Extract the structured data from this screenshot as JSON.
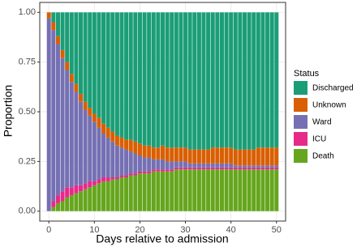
{
  "chart_data": {
    "type": "stacked_bar",
    "xlabel": "Days relative to admission",
    "ylabel": "Proportion",
    "legend_title": "Status",
    "x": [
      0,
      1,
      2,
      3,
      4,
      5,
      6,
      7,
      8,
      9,
      10,
      11,
      12,
      13,
      14,
      15,
      16,
      17,
      18,
      19,
      20,
      21,
      22,
      23,
      24,
      25,
      26,
      27,
      28,
      29,
      30,
      31,
      32,
      33,
      34,
      35,
      36,
      37,
      38,
      39,
      40,
      41,
      42,
      43,
      44,
      45,
      46,
      47,
      48,
      49,
      50
    ],
    "series": [
      {
        "name": "Discharged",
        "color": "#1b9e77",
        "values": [
          0,
          0.05,
          0.12,
          0.19,
          0.25,
          0.31,
          0.36,
          0.41,
          0.45,
          0.48,
          0.51,
          0.53,
          0.56,
          0.58,
          0.6,
          0.62,
          0.63,
          0.64,
          0.64,
          0.65,
          0.66,
          0.67,
          0.67,
          0.68,
          0.68,
          0.67,
          0.68,
          0.68,
          0.68,
          0.68,
          0.68,
          0.69,
          0.69,
          0.69,
          0.69,
          0.69,
          0.68,
          0.68,
          0.68,
          0.68,
          0.68,
          0.69,
          0.69,
          0.69,
          0.69,
          0.69,
          0.68,
          0.68,
          0.68,
          0.68,
          0.68
        ]
      },
      {
        "name": "Unknown",
        "color": "#d95f02",
        "values": [
          0.03,
          0.04,
          0.04,
          0.04,
          0.04,
          0.04,
          0.04,
          0.04,
          0.04,
          0.04,
          0.04,
          0.05,
          0.05,
          0.05,
          0.05,
          0.05,
          0.05,
          0.05,
          0.06,
          0.06,
          0.06,
          0.06,
          0.06,
          0.06,
          0.06,
          0.07,
          0.07,
          0.07,
          0.07,
          0.07,
          0.07,
          0.07,
          0.07,
          0.07,
          0.07,
          0.07,
          0.08,
          0.08,
          0.08,
          0.08,
          0.08,
          0.08,
          0.08,
          0.08,
          0.08,
          0.08,
          0.09,
          0.09,
          0.09,
          0.09,
          0.09
        ]
      },
      {
        "name": "Ward",
        "color": "#7570b3",
        "values": [
          0.97,
          0.86,
          0.76,
          0.67,
          0.59,
          0.53,
          0.47,
          0.42,
          0.37,
          0.33,
          0.3,
          0.26,
          0.22,
          0.2,
          0.18,
          0.16,
          0.14,
          0.13,
          0.11,
          0.1,
          0.08,
          0.07,
          0.07,
          0.05,
          0.05,
          0.05,
          0.04,
          0.04,
          0.03,
          0.03,
          0.03,
          0.02,
          0.02,
          0.02,
          0.02,
          0.02,
          0.02,
          0.02,
          0.02,
          0.02,
          0.02,
          0.01,
          0.01,
          0.01,
          0.01,
          0.01,
          0.01,
          0.01,
          0.01,
          0.01,
          0.01
        ]
      },
      {
        "name": "ICU",
        "color": "#e7298a",
        "values": [
          0,
          0.03,
          0.04,
          0.05,
          0.05,
          0.04,
          0.04,
          0.03,
          0.03,
          0.03,
          0.02,
          0.02,
          0.02,
          0.02,
          0.01,
          0.01,
          0.01,
          0.01,
          0.01,
          0.01,
          0.01,
          0.01,
          0.01,
          0.01,
          0.01,
          0.01,
          0.01,
          0.01,
          0.01,
          0.01,
          0.01,
          0.01,
          0.01,
          0.01,
          0.01,
          0.01,
          0.01,
          0.01,
          0.01,
          0.01,
          0.01,
          0.01,
          0.01,
          0.01,
          0.01,
          0.01,
          0.01,
          0.01,
          0.01,
          0.01,
          0.01
        ]
      },
      {
        "name": "Death",
        "color": "#66a61e",
        "values": [
          0,
          0.02,
          0.04,
          0.05,
          0.07,
          0.08,
          0.09,
          0.1,
          0.11,
          0.12,
          0.13,
          0.14,
          0.15,
          0.15,
          0.16,
          0.16,
          0.17,
          0.17,
          0.18,
          0.18,
          0.19,
          0.19,
          0.19,
          0.2,
          0.2,
          0.2,
          0.2,
          0.2,
          0.21,
          0.21,
          0.21,
          0.21,
          0.21,
          0.21,
          0.21,
          0.21,
          0.21,
          0.21,
          0.21,
          0.21,
          0.21,
          0.21,
          0.21,
          0.21,
          0.21,
          0.21,
          0.21,
          0.21,
          0.21,
          0.21,
          0.21
        ]
      }
    ],
    "xlim": [
      -2,
      52
    ],
    "xticks": [
      0,
      10,
      20,
      30,
      40,
      50
    ],
    "ylim": [
      -0.05,
      1.05
    ],
    "yticks": [
      {
        "value": 0,
        "label": "0.00"
      },
      {
        "value": 0.25,
        "label": "0.25"
      },
      {
        "value": 0.5,
        "label": "0.50"
      },
      {
        "value": 0.75,
        "label": "0.75"
      },
      {
        "value": 1,
        "label": "1.00"
      }
    ],
    "grid": true
  }
}
